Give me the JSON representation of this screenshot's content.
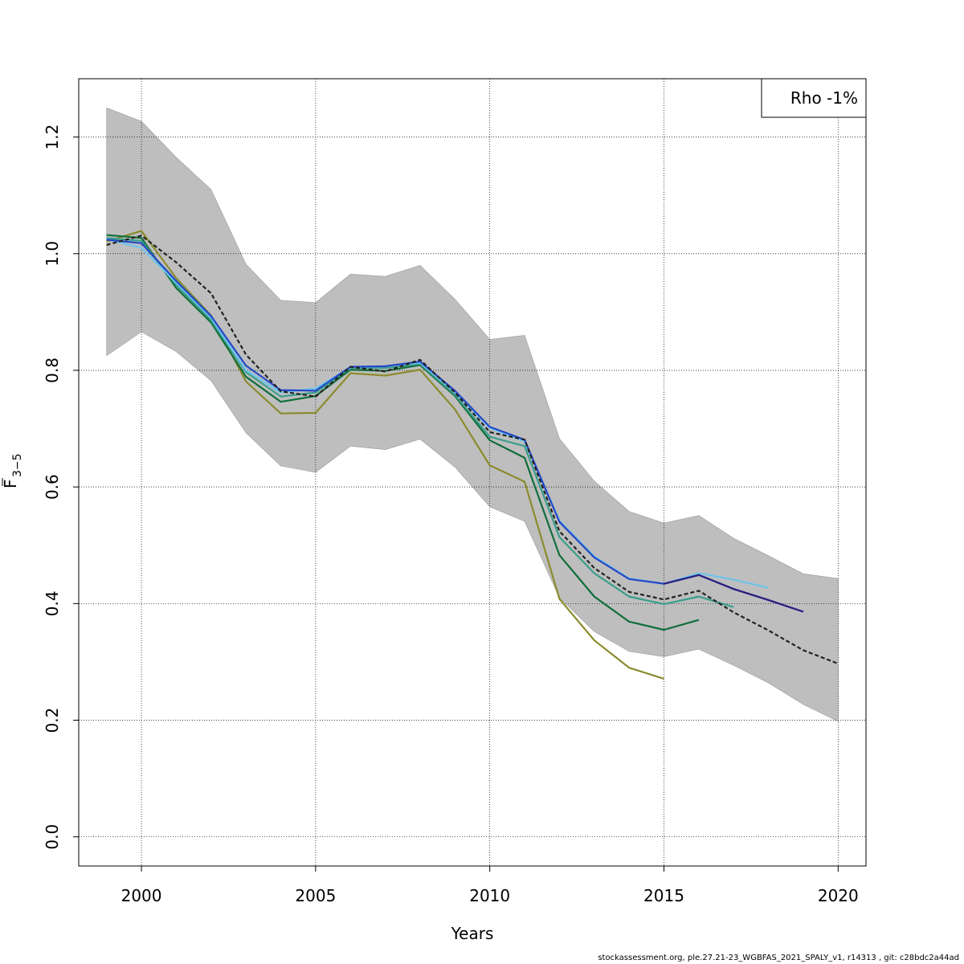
{
  "chart_data": {
    "type": "line",
    "xlabel": "Years",
    "ylabel_main": "F",
    "ylabel_sub": "3−5",
    "xlim": [
      1998.2,
      2020.8
    ],
    "ylim": [
      -0.05,
      1.3
    ],
    "x_ticks": [
      2000,
      2005,
      2010,
      2015,
      2020
    ],
    "y_ticks": [
      0.0,
      0.2,
      0.4,
      0.6,
      0.8,
      1.0,
      1.2
    ],
    "x_tick_labels": [
      "2000",
      "2005",
      "2010",
      "2015",
      "2020"
    ],
    "y_tick_labels": [
      "0.0",
      "0.2",
      "0.4",
      "0.6",
      "0.8",
      "1.0",
      "1.2"
    ],
    "grid": true,
    "legend": {
      "text": "Rho -1%",
      "position": "top-right"
    },
    "band": {
      "color": "#bebebe",
      "x": [
        1999,
        2000,
        2001,
        2002,
        2003,
        2004,
        2005,
        2006,
        2007,
        2008,
        2009,
        2010,
        2011,
        2012,
        2013,
        2014,
        2015,
        2016,
        2017,
        2018,
        2019,
        2020
      ],
      "upper": [
        1.25,
        1.227,
        1.165,
        1.11,
        0.982,
        0.92,
        0.916,
        0.965,
        0.961,
        0.98,
        0.922,
        0.853,
        0.86,
        0.683,
        0.61,
        0.558,
        0.538,
        0.551,
        0.512,
        0.482,
        0.451,
        0.443
      ],
      "lower": [
        0.825,
        0.866,
        0.832,
        0.782,
        0.693,
        0.636,
        0.625,
        0.67,
        0.664,
        0.682,
        0.634,
        0.566,
        0.541,
        0.41,
        0.352,
        0.318,
        0.309,
        0.322,
        0.294,
        0.264,
        0.227,
        0.198
      ]
    },
    "series": [
      {
        "color": "#8b8b2e",
        "dashed": false,
        "x": [
          1999,
          2000,
          2001,
          2002,
          2003,
          2004,
          2005,
          2006,
          2007,
          2008,
          2009,
          2010,
          2011,
          2012,
          2013,
          2014,
          2015
        ],
        "values": [
          1.021,
          1.039,
          0.958,
          0.894,
          0.781,
          0.726,
          0.727,
          0.795,
          0.791,
          0.801,
          0.733,
          0.637,
          0.609,
          0.408,
          0.337,
          0.29,
          0.271
        ]
      },
      {
        "color": "#0f6e3a",
        "dashed": false,
        "x": [
          1999,
          2000,
          2001,
          2002,
          2003,
          2004,
          2005,
          2006,
          2007,
          2008,
          2009,
          2010,
          2011,
          2012,
          2013,
          2014,
          2015,
          2016
        ],
        "values": [
          1.032,
          1.027,
          0.941,
          0.882,
          0.789,
          0.746,
          0.756,
          0.801,
          0.799,
          0.809,
          0.756,
          0.68,
          0.65,
          0.483,
          0.412,
          0.369,
          0.355,
          0.372
        ]
      },
      {
        "color": "#3a9e8c",
        "dashed": false,
        "x": [
          1999,
          2000,
          2001,
          2002,
          2003,
          2004,
          2005,
          2006,
          2007,
          2008,
          2009,
          2010,
          2011,
          2012,
          2013,
          2014,
          2015,
          2016,
          2017
        ],
        "values": [
          1.027,
          1.022,
          0.946,
          0.886,
          0.797,
          0.755,
          0.762,
          0.804,
          0.804,
          0.811,
          0.758,
          0.686,
          0.67,
          0.514,
          0.452,
          0.412,
          0.399,
          0.412,
          0.394
        ]
      },
      {
        "color": "#6ec4ec",
        "dashed": false,
        "x": [
          1999,
          2000,
          2001,
          2002,
          2003,
          2004,
          2005,
          2006,
          2007,
          2008,
          2009,
          2010,
          2011,
          2012,
          2013,
          2014,
          2015,
          2016,
          2017,
          2018
        ],
        "values": [
          1.025,
          1.01,
          0.95,
          0.89,
          0.8,
          0.762,
          0.769,
          0.805,
          0.807,
          0.813,
          0.762,
          0.701,
          0.678,
          0.542,
          0.481,
          0.443,
          0.434,
          0.452,
          0.441,
          0.427
        ]
      },
      {
        "color": "#2447c7",
        "dashed": false,
        "x": [
          1999,
          2000,
          2001,
          2002,
          2003,
          2004,
          2005,
          2006,
          2007,
          2008,
          2009,
          2010,
          2011,
          2012,
          2013,
          2014,
          2015,
          2016,
          2017,
          2018,
          2019
        ],
        "values": [
          1.024,
          1.018,
          0.953,
          0.893,
          0.808,
          0.766,
          0.765,
          0.806,
          0.807,
          0.815,
          0.765,
          0.703,
          0.681,
          0.54,
          0.479,
          0.442,
          0.434,
          0.449,
          0.425,
          0.406,
          0.386
        ]
      },
      {
        "color": "#2b1f7d",
        "dashed": false,
        "x": [
          2015,
          2016,
          2017,
          2018,
          2019
        ],
        "values": [
          0.434,
          0.449,
          0.425,
          0.406,
          0.386
        ]
      },
      {
        "color": "#222222",
        "dashed": true,
        "x": [
          1999,
          2000,
          2001,
          2002,
          2003,
          2004,
          2005,
          2006,
          2007,
          2008,
          2009,
          2010,
          2011,
          2012,
          2013,
          2014,
          2015,
          2016,
          2017,
          2018,
          2019,
          2020
        ],
        "values": [
          1.015,
          1.031,
          0.985,
          0.932,
          0.827,
          0.764,
          0.755,
          0.806,
          0.798,
          0.818,
          0.762,
          0.694,
          0.681,
          0.524,
          0.461,
          0.42,
          0.407,
          0.422,
          0.385,
          0.354,
          0.32,
          0.297
        ]
      }
    ]
  },
  "footer": "stockassessment.org, ple.27.21-23_WGBFAS_2021_SPALY_v1, r14313 , git: c28bdc2a44ad"
}
